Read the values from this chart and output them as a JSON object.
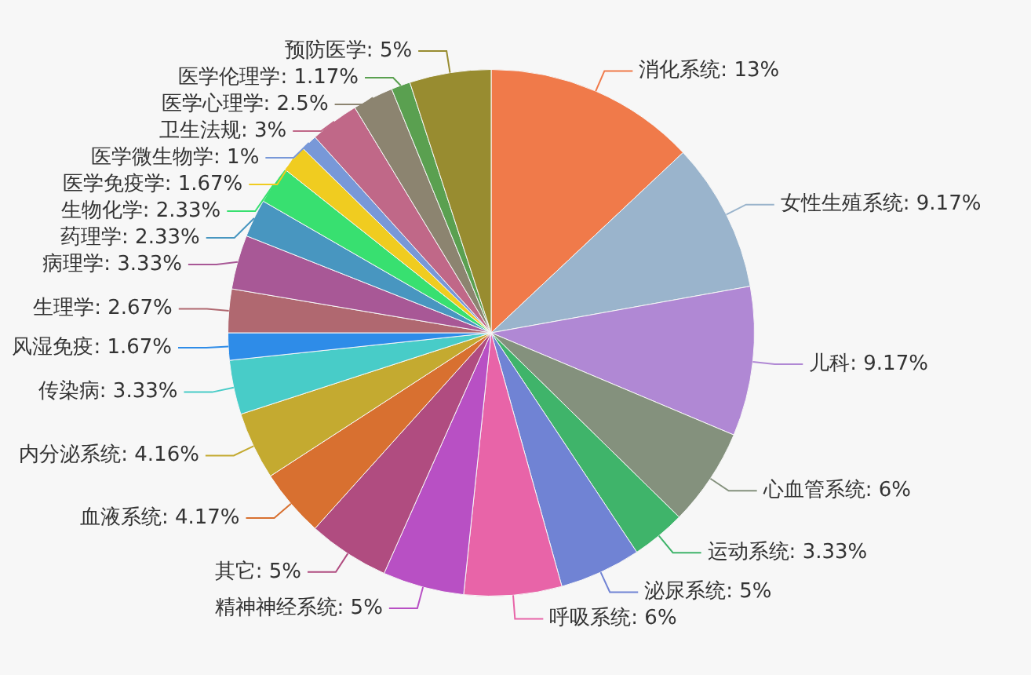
{
  "chart_data": {
    "type": "pie",
    "categories": [
      "消化系统",
      "女性生殖系统",
      "儿科",
      "心血管系统",
      "运动系统",
      "泌尿系统",
      "呼吸系统",
      "精神神经系统",
      "其它",
      "血液系统",
      "内分泌系统",
      "传染病",
      "风湿免疫",
      "生理学",
      "病理学",
      "药理学",
      "生物化学",
      "医学免疫学",
      "医学微生物学",
      "卫生法规",
      "医学心理学",
      "医学伦理学",
      "预防医学"
    ],
    "values": [
      13,
      9.17,
      9.17,
      6,
      3.33,
      5,
      6,
      5,
      5,
      4.17,
      4.16,
      3.33,
      1.67,
      2.67,
      3.33,
      2.33,
      2.33,
      1.67,
      1,
      3,
      2.5,
      1.17,
      5
    ],
    "value_labels": [
      "13%",
      "9.17%",
      "9.17%",
      "6%",
      "3.33%",
      "5%",
      "6%",
      "5%",
      "5%",
      "4.17%",
      "4.16%",
      "3.33%",
      "1.67%",
      "2.67%",
      "3.33%",
      "2.33%",
      "2.33%",
      "1.67%",
      "1%",
      "3%",
      "2.5%",
      "1.17%",
      "5%"
    ],
    "colors": [
      "#f07a4a",
      "#9ab4cc",
      "#b088d4",
      "#84917d",
      "#3fb46a",
      "#7083d4",
      "#e864a8",
      "#b850c4",
      "#b04c80",
      "#d87030",
      "#c4aa30",
      "#48ccc8",
      "#2e8ce8",
      "#b06870",
      "#a85896",
      "#4896c0",
      "#38e070",
      "#f0cc20",
      "#7898d8",
      "#c06888",
      "#8c8470",
      "#5aa050",
      "#988c30"
    ],
    "legend": false
  }
}
